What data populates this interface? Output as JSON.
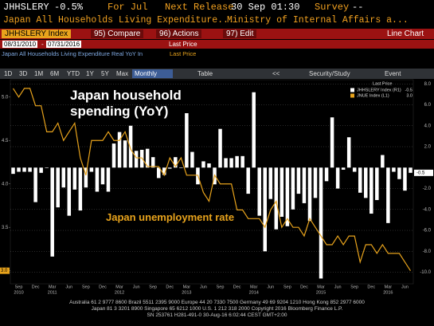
{
  "header": {
    "ticker": "JHHSLERY",
    "change": "-0.5%",
    "period": "For Jul",
    "release_label": "Next Release",
    "release": "30 Sep 01:30",
    "survey_label": "Survey",
    "survey": "--",
    "name": "Japan All Households Living Expenditure...",
    "source": "Ministry of Internal Affairs a..."
  },
  "toolbar": {
    "security": "JHHSLERY Index",
    "compare": "95) Compare",
    "actions": "96) Actions",
    "edit": "97) Edit",
    "chart_type": "Line Chart",
    "start": "08/31/2010",
    "dash": "-",
    "end": "07/31/2016",
    "field": "Last Price",
    "subtitle": "Japan All Households Living Expenditure Real YoY In",
    "subtitle_field": "Last Price",
    "ranges": [
      "1D",
      "3D",
      "1M",
      "6M",
      "YTD",
      "1Y",
      "5Y",
      "Max"
    ],
    "frequency": "Monthly",
    "table": "Table",
    "nav": "<<",
    "study": "Security/Study",
    "event": "Event"
  },
  "chart_data": {
    "type": "bar",
    "annotations": [
      "Japan household spending (YoY)",
      "Japan unemployment rate"
    ],
    "legend_title": "Last Price",
    "last_values": [
      "-0.5",
      "3.0"
    ],
    "categories": [
      null,
      "Sep",
      null,
      null,
      "Dec",
      null,
      null,
      "Mar",
      null,
      null,
      "Jun",
      null,
      null,
      "Sep",
      null,
      null,
      "Dec",
      null,
      null,
      "Mar",
      null,
      null,
      "Jun",
      null,
      null,
      "Sep",
      null,
      null,
      "Dec",
      null,
      null,
      "Mar",
      null,
      null,
      "Jun",
      null,
      null,
      "Sep",
      null,
      null,
      "Dec",
      null,
      null,
      "Mar",
      null,
      null,
      "Jun",
      null,
      null,
      "Sep",
      null,
      null,
      "Dec",
      null,
      null,
      "Mar",
      null,
      null,
      "Jun",
      null,
      null,
      "Sep",
      null,
      null,
      "Dec",
      null,
      null,
      "Mar",
      null,
      null,
      "Jun",
      null
    ],
    "years": [
      null,
      "2010",
      null,
      null,
      null,
      null,
      null,
      "2011",
      null,
      null,
      null,
      null,
      null,
      null,
      null,
      null,
      null,
      null,
      null,
      "2012",
      null,
      null,
      null,
      null,
      null,
      null,
      null,
      null,
      null,
      null,
      null,
      "2013",
      null,
      null,
      null,
      null,
      null,
      null,
      null,
      null,
      null,
      null,
      null,
      "2014",
      null,
      null,
      null,
      null,
      null,
      null,
      null,
      null,
      null,
      null,
      null,
      "2015",
      null,
      null,
      null,
      null,
      null,
      null,
      null,
      null,
      null,
      null,
      null,
      "2016",
      null,
      null,
      null,
      null
    ],
    "series": [
      {
        "name": "JHHSLERY Index (R1)",
        "type": "bar",
        "axis": "y2",
        "color": "#ffffff",
        "values": [
          -0.6,
          -0.4,
          -0.4,
          -0.4,
          -3.3,
          -0.5,
          0,
          -8.5,
          -3.8,
          -1.9,
          -4.6,
          -2.1,
          -4.1,
          -1.9,
          -0.4,
          -2.3,
          -1.6,
          -2.3,
          2.3,
          3.4,
          2.6,
          4.0,
          1.6,
          1.7,
          1.8,
          1.0,
          -1.0,
          -0.7,
          -0.1,
          1.0,
          0,
          5.2,
          1.5,
          -1.6,
          0.6,
          0.4,
          -1.6,
          3.7,
          0.9,
          0.9,
          1.1,
          1.1,
          -2.5,
          7.2,
          -4.6,
          -8.0,
          -3.0,
          -5.9,
          -4.7,
          -5.6,
          -4.0,
          -2.5,
          -3.4,
          -5.1,
          -2.9,
          -10.6,
          -1.3,
          4.8,
          -2.0,
          -0.2,
          2.9,
          -0.4,
          -2.4,
          -2.9,
          -4.4,
          -3.1,
          1.2,
          -5.3,
          -0.4,
          -1.1,
          -2.2,
          -0.5
        ]
      },
      {
        "name": "JNUE Index (L1)",
        "type": "line",
        "color": "#e8a31c",
        "values": [
          5.1,
          5.0,
          5.1,
          5.1,
          4.9,
          4.9,
          4.6,
          4.6,
          4.7,
          4.5,
          4.6,
          4.7,
          4.3,
          4.1,
          4.5,
          4.5,
          4.5,
          4.6,
          4.5,
          4.5,
          4.6,
          4.4,
          4.3,
          4.3,
          4.2,
          4.2,
          4.2,
          4.1,
          4.3,
          4.2,
          4.3,
          4.1,
          4.1,
          4.1,
          3.9,
          3.8,
          4.1,
          4.0,
          4.0,
          4.0,
          3.7,
          3.7,
          3.6,
          3.6,
          3.6,
          3.5,
          3.7,
          3.8,
          3.5,
          3.6,
          3.5,
          3.5,
          3.4,
          3.6,
          3.5,
          3.4,
          3.3,
          3.3,
          3.4,
          3.3,
          3.4,
          3.4,
          3.1,
          3.3,
          3.3,
          3.2,
          3.3,
          3.2,
          3.2,
          3.2,
          3.1,
          3.0
        ]
      }
    ],
    "ylim": [
      2.85,
      5.2
    ],
    "yticks": [
      {
        "value": 3,
        "label": "3.0"
      },
      {
        "value": 3.5,
        "label": "3.5"
      },
      {
        "value": 4,
        "label": "4.0"
      },
      {
        "value": 4.5,
        "label": "4.5"
      },
      {
        "value": 5,
        "label": "5.0"
      }
    ],
    "y2lim": [
      -11.1,
      8.4
    ],
    "y2ticks": [
      {
        "value": 8,
        "label": "8.0"
      },
      {
        "value": 6,
        "label": "6.0"
      },
      {
        "value": 4,
        "label": "4.0"
      },
      {
        "value": 2,
        "label": "2.0"
      },
      {
        "value": -2,
        "label": "-2.0"
      },
      {
        "value": -4,
        "label": "-4.0"
      },
      {
        "value": -6,
        "label": "-6.0"
      },
      {
        "value": -8,
        "label": "-8.0"
      },
      {
        "value": -10,
        "label": "-10.0"
      }
    ],
    "grid": true
  },
  "footer": {
    "lines": [
      "Australia 61 2 9777 8600 Brazil 5511 2395 9000 Europe 44 20 7330 7500 Germany 49 69 9204 1210 Hong Kong 852 2977 6000",
      "Japan 81 3 3201 8900       Singapore 65 6212 1000       U.S. 1 212 318 2000       Copyright 2016 Bloomberg Finance L.P.",
      "SN 253761 H281-491-0 30-Aug-16  6:02:44 CEST GMT+2:00"
    ]
  }
}
